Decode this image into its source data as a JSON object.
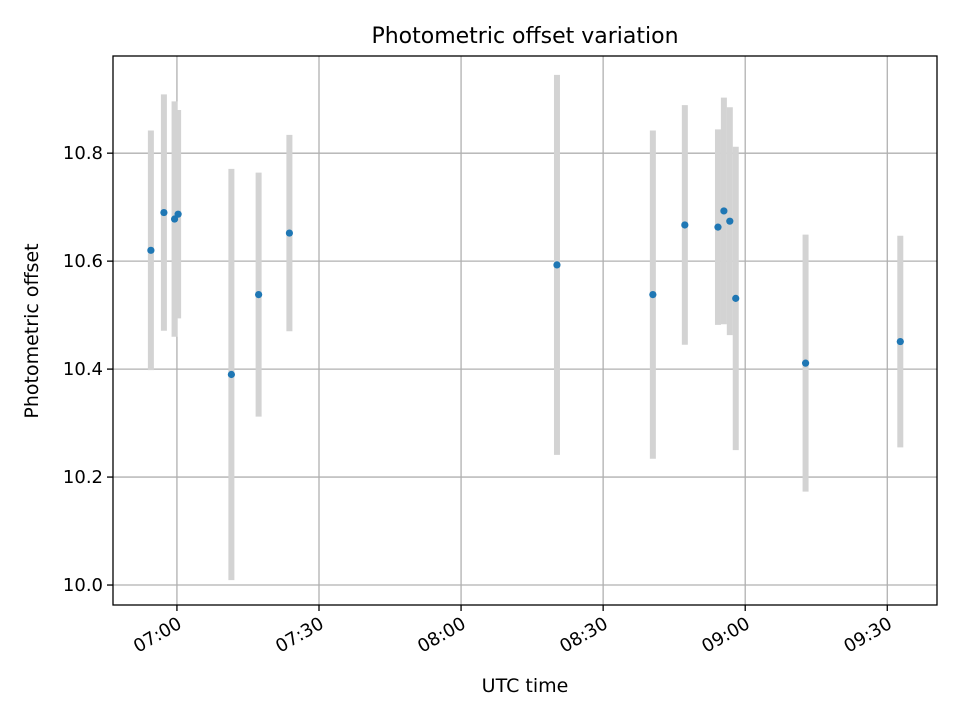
{
  "chart_data": {
    "type": "scatter",
    "title": "Photometric offset variation",
    "xlabel": "UTC time",
    "ylabel": "Photometric offset",
    "xlim": [
      "06:46:30",
      "09:40:30"
    ],
    "ylim": [
      9.963,
      10.98
    ],
    "x_ticks": [
      "07:00",
      "07:30",
      "08:00",
      "08:30",
      "09:00",
      "09:30"
    ],
    "y_ticks": [
      "10.0",
      "10.2",
      "10.4",
      "10.6",
      "10.8"
    ],
    "grid": true,
    "colors": {
      "point": "#1f77b4",
      "errorbar": "#d3d3d3",
      "grid": "#b0b0b0"
    },
    "points": [
      {
        "x": "06:54:30",
        "y": 10.62,
        "yerr": 0.222
      },
      {
        "x": "06:57:15",
        "y": 10.69,
        "yerr": 0.219
      },
      {
        "x": "06:59:30",
        "y": 10.678,
        "yerr": 0.218
      },
      {
        "x": "07:00:15",
        "y": 10.687,
        "yerr": 0.193
      },
      {
        "x": "07:11:30",
        "y": 10.39,
        "yerr": 0.381
      },
      {
        "x": "07:17:15",
        "y": 10.538,
        "yerr": 0.226
      },
      {
        "x": "07:23:45",
        "y": 10.652,
        "yerr": 0.182
      },
      {
        "x": "08:20:15",
        "y": 10.593,
        "yerr": 0.352
      },
      {
        "x": "08:40:30",
        "y": 10.538,
        "yerr": 0.304
      },
      {
        "x": "08:47:15",
        "y": 10.667,
        "yerr": 0.222
      },
      {
        "x": "08:54:15",
        "y": 10.663,
        "yerr": 0.181
      },
      {
        "x": "08:55:30",
        "y": 10.693,
        "yerr": 0.21
      },
      {
        "x": "08:56:45",
        "y": 10.674,
        "yerr": 0.211
      },
      {
        "x": "08:58:00",
        "y": 10.531,
        "yerr": 0.281
      },
      {
        "x": "09:12:45",
        "y": 10.411,
        "yerr": 0.238
      },
      {
        "x": "09:32:45",
        "y": 10.451,
        "yerr": 0.196
      }
    ]
  }
}
